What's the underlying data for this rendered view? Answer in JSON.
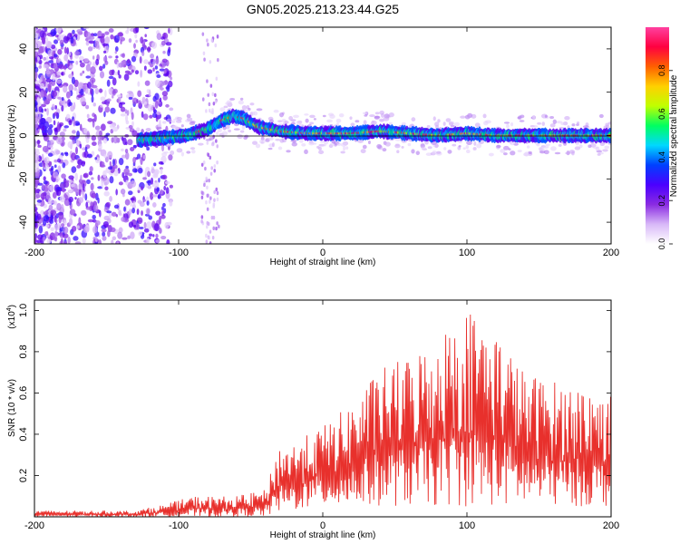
{
  "title": "GN05.2025.213.23.44.G25",
  "chart_data": [
    {
      "type": "heatmap",
      "xlabel": "Height of straight line (km)",
      "ylabel": "Frequency (Hz)",
      "xlim": [
        -200,
        200
      ],
      "ylim": [
        -50,
        50
      ],
      "x_ticks": [
        "-200",
        "-100",
        "0",
        "100",
        "200"
      ],
      "y_ticks": [
        "-40",
        "-20",
        "0",
        "20",
        "40"
      ],
      "x_tick_values": [
        -200,
        -100,
        0,
        100,
        200
      ],
      "y_tick_values": [
        -40,
        -20,
        0,
        20,
        40
      ],
      "ridge": [
        {
          "x": -125,
          "y": -2
        },
        {
          "x": -110,
          "y": -1
        },
        {
          "x": -95,
          "y": 0
        },
        {
          "x": -80,
          "y": 3
        },
        {
          "x": -70,
          "y": 7
        },
        {
          "x": -62,
          "y": 9
        },
        {
          "x": -55,
          "y": 8
        },
        {
          "x": -45,
          "y": 4
        },
        {
          "x": -30,
          "y": 2
        },
        {
          "x": -10,
          "y": 1
        },
        {
          "x": 20,
          "y": 1
        },
        {
          "x": 40,
          "y": 2
        },
        {
          "x": 60,
          "y": 1
        },
        {
          "x": 80,
          "y": 0
        },
        {
          "x": 100,
          "y": 1
        },
        {
          "x": 120,
          "y": 0
        },
        {
          "x": 150,
          "y": 0
        },
        {
          "x": 200,
          "y": 0
        }
      ],
      "colorbar": {
        "label": "Normalized spectral amplitude",
        "range": [
          0,
          1
        ],
        "ticks": [
          "0.0",
          "0.2",
          "0.4",
          "0.6",
          "0.8"
        ],
        "tick_values": [
          0.0,
          0.2,
          0.4,
          0.6,
          0.8
        ],
        "colors": [
          "#ffffff",
          "#d8b8f8",
          "#8a2be2",
          "#4b00ff",
          "#0040ff",
          "#00d8ff",
          "#00ff60",
          "#c0ff00",
          "#ffd000",
          "#ff6000",
          "#ff0040",
          "#ff40a0"
        ]
      }
    },
    {
      "type": "line",
      "xlabel": "Height of straight line (km)",
      "ylabel": "SNR (10 * v/v)",
      "scale_label": "(x10",
      "scale_exp": "4",
      "scale_close": ")",
      "xlim": [
        -200,
        200
      ],
      "ylim": [
        0,
        1.05
      ],
      "x_ticks": [
        "-200",
        "-100",
        "0",
        "100",
        "200"
      ],
      "y_ticks": [
        "0.2",
        "0.4",
        "0.6",
        "0.8",
        "1.0"
      ],
      "x_tick_values": [
        -200,
        -100,
        0,
        100,
        200
      ],
      "y_tick_values": [
        0.2,
        0.4,
        0.6,
        0.8,
        1.0
      ],
      "color": "#e8302c",
      "envelope": [
        {
          "x": -200,
          "lo": 0.0,
          "hi": 0.03
        },
        {
          "x": -130,
          "lo": 0.0,
          "hi": 0.03
        },
        {
          "x": -110,
          "lo": 0.0,
          "hi": 0.06
        },
        {
          "x": -90,
          "lo": 0.0,
          "hi": 0.1
        },
        {
          "x": -60,
          "lo": 0.0,
          "hi": 0.1
        },
        {
          "x": -40,
          "lo": 0.0,
          "hi": 0.13
        },
        {
          "x": -30,
          "lo": 0.02,
          "hi": 0.35
        },
        {
          "x": -20,
          "lo": 0.03,
          "hi": 0.36
        },
        {
          "x": 0,
          "lo": 0.05,
          "hi": 0.44
        },
        {
          "x": 20,
          "lo": 0.05,
          "hi": 0.55
        },
        {
          "x": 40,
          "lo": 0.05,
          "hi": 0.72
        },
        {
          "x": 60,
          "lo": 0.05,
          "hi": 0.78
        },
        {
          "x": 80,
          "lo": 0.05,
          "hi": 0.88
        },
        {
          "x": 100,
          "lo": 0.05,
          "hi": 1.02
        },
        {
          "x": 120,
          "lo": 0.05,
          "hi": 0.91
        },
        {
          "x": 140,
          "lo": 0.05,
          "hi": 0.7
        },
        {
          "x": 160,
          "lo": 0.05,
          "hi": 0.66
        },
        {
          "x": 180,
          "lo": 0.05,
          "hi": 0.63
        },
        {
          "x": 200,
          "lo": 0.05,
          "hi": 0.6
        }
      ]
    }
  ]
}
